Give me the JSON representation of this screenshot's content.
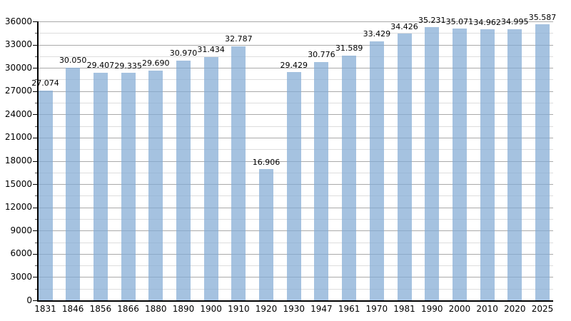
{
  "chart_data": {
    "type": "bar",
    "title": "",
    "xlabel": "",
    "ylabel": "",
    "categories": [
      "1831",
      "1846",
      "1856",
      "1866",
      "1880",
      "1890",
      "1900",
      "1910",
      "1920",
      "1930",
      "1947",
      "1961",
      "1970",
      "1981",
      "1990",
      "2000",
      "2010",
      "2020",
      "2025"
    ],
    "values": [
      27074,
      30050,
      29407,
      29335,
      29690,
      30970,
      31434,
      32787,
      16906,
      29429,
      30776,
      31589,
      33429,
      34426,
      35231,
      35071,
      34962,
      34995,
      35587
    ],
    "bar_labels": [
      "27.074",
      "30.050",
      "29.407",
      "29.335",
      "29.690",
      "30.970",
      "31.434",
      "32.787",
      "16.906",
      "29.429",
      "30.776",
      "31.589",
      "33.429",
      "34.426",
      "35.231",
      "35.071",
      "34.962",
      "34.995",
      "35.587"
    ],
    "ylim": [
      0,
      36000
    ],
    "y_major_step": 3000,
    "y_minor_step": 1500,
    "y_tick_labels": [
      "0",
      "3000",
      "6000",
      "9000",
      "12000",
      "15000",
      "18000",
      "21000",
      "24000",
      "27000",
      "30000",
      "33000",
      "36000"
    ],
    "grid": "on",
    "legend": "none",
    "colors": {
      "bar_fill": "rgba(130,170,212,0.72)",
      "major_grid": "#aaaaaa",
      "minor_grid": "#dddddd",
      "axis": "#000000",
      "text": "#000000",
      "background": "#ffffff"
    }
  }
}
